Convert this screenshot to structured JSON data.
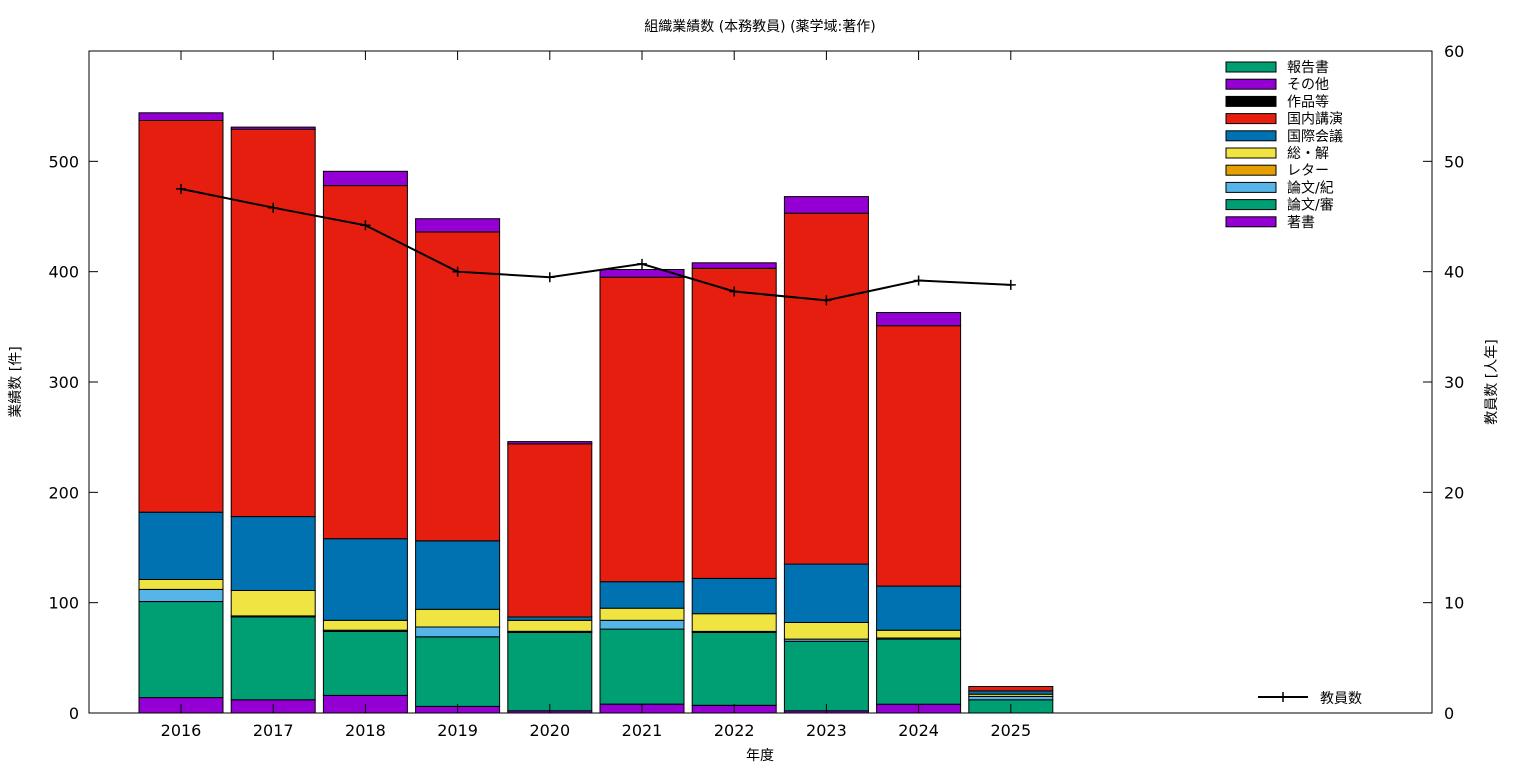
{
  "chart_data": {
    "type": "bar",
    "stacked": true,
    "title": "組織業績数 (本務教員) (薬学域:著作)",
    "xlabel": "年度",
    "ylabel": "業績数 [件]",
    "y2label": "教員数 [人年]",
    "categories": [
      "2016",
      "2017",
      "2018",
      "2019",
      "2020",
      "2021",
      "2022",
      "2023",
      "2024",
      "2025"
    ],
    "ylim": [
      0,
      600
    ],
    "yticks": [
      0,
      100,
      200,
      300,
      400,
      500
    ],
    "y2lim": [
      0,
      60
    ],
    "y2ticks": [
      0,
      10,
      20,
      30,
      40,
      50,
      60
    ],
    "legend_position": "top-right",
    "series": [
      {
        "name": "著書",
        "color": "#9400d3",
        "values": [
          14,
          12,
          16,
          6,
          2,
          8,
          7,
          2,
          8,
          0
        ]
      },
      {
        "name": "論文/審",
        "color": "#009e73",
        "values": [
          87,
          75,
          58,
          63,
          71,
          68,
          66,
          63,
          59,
          12
        ]
      },
      {
        "name": "論文/紀",
        "color": "#56b4e9",
        "values": [
          11,
          1,
          1,
          9,
          1,
          8,
          1,
          2,
          1,
          3
        ]
      },
      {
        "name": "レター",
        "color": "#e69f00",
        "values": [
          0,
          0,
          0,
          0,
          0,
          0,
          0,
          0,
          0,
          0
        ]
      },
      {
        "name": "総・解",
        "color": "#f0e442",
        "values": [
          9,
          23,
          9,
          16,
          10,
          11,
          16,
          15,
          7,
          2
        ]
      },
      {
        "name": "国際会議",
        "color": "#0072b2",
        "values": [
          61,
          67,
          74,
          62,
          3,
          24,
          32,
          53,
          40,
          3
        ]
      },
      {
        "name": "国内講演",
        "color": "#e51e10",
        "values": [
          355,
          351,
          320,
          280,
          157,
          276,
          281,
          318,
          236,
          4
        ]
      },
      {
        "name": "作品等",
        "color": "#000000",
        "values": [
          0,
          0,
          0,
          0,
          0,
          0,
          0,
          0,
          0,
          0
        ]
      },
      {
        "name": "その他",
        "color": "#9400d3",
        "values": [
          7,
          2,
          13,
          12,
          2,
          7,
          5,
          15,
          12,
          0
        ]
      },
      {
        "name": "報告書",
        "color": "#009e73",
        "values": [
          0,
          0,
          0,
          0,
          0,
          0,
          0,
          0,
          0,
          0
        ]
      }
    ],
    "line_series": {
      "name": "教員数",
      "color": "#000000",
      "axis": "y2",
      "values": [
        47.5,
        45.8,
        44.2,
        40.0,
        39.5,
        40.7,
        38.2,
        37.4,
        39.2,
        38.8
      ]
    }
  }
}
